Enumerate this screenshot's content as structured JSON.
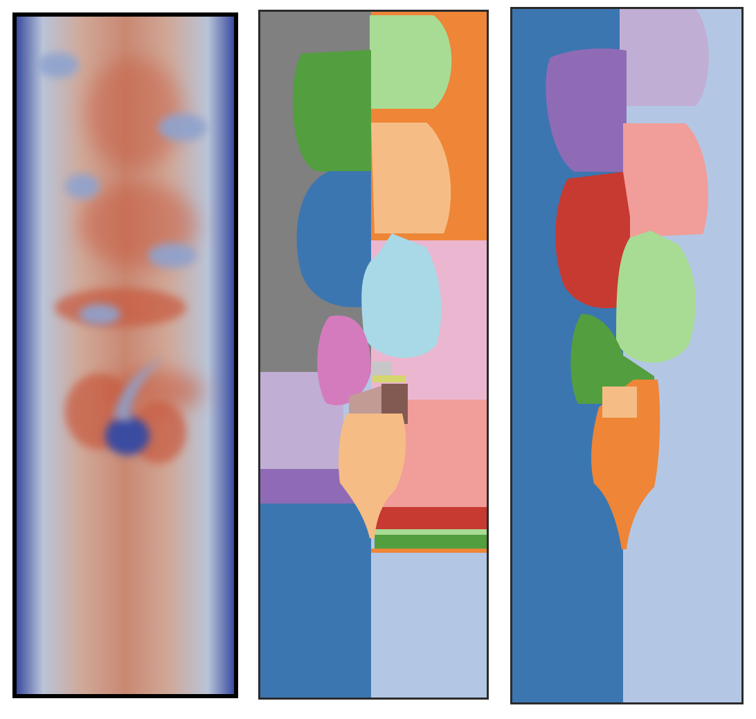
{
  "figure": {
    "panels": [
      {
        "id": "flow-field",
        "kind": "continuous scalar field (blue to red colormap)"
      },
      {
        "id": "segmentation-fine",
        "kind": "segmentation map with many regions"
      },
      {
        "id": "segmentation-coarse",
        "kind": "segmentation map with fewer regions"
      }
    ]
  },
  "palette": {
    "field_low": "#3a4ca0",
    "field_mid": "#b9c4d8",
    "field_high": "#c8583e",
    "steelblue": "#3c76b0",
    "lightblue": "#b3c7e5",
    "orange": "#ee8537",
    "peach": "#f5bd85",
    "green": "#539e3f",
    "lightgreen": "#a8dc94",
    "gray": "#808080",
    "lightgray": "#c7c7c7",
    "purple": "#8f6bb6",
    "lilac": "#c1aed4",
    "pink": "#ebb6cf",
    "magenta": "#d47bbd",
    "salmon": "#f19d99",
    "red": "#c63a32",
    "cyan": "#a9d9e6",
    "brown": "#835a52",
    "taupe": "#c19b94",
    "yellow": "#d5d66e"
  }
}
